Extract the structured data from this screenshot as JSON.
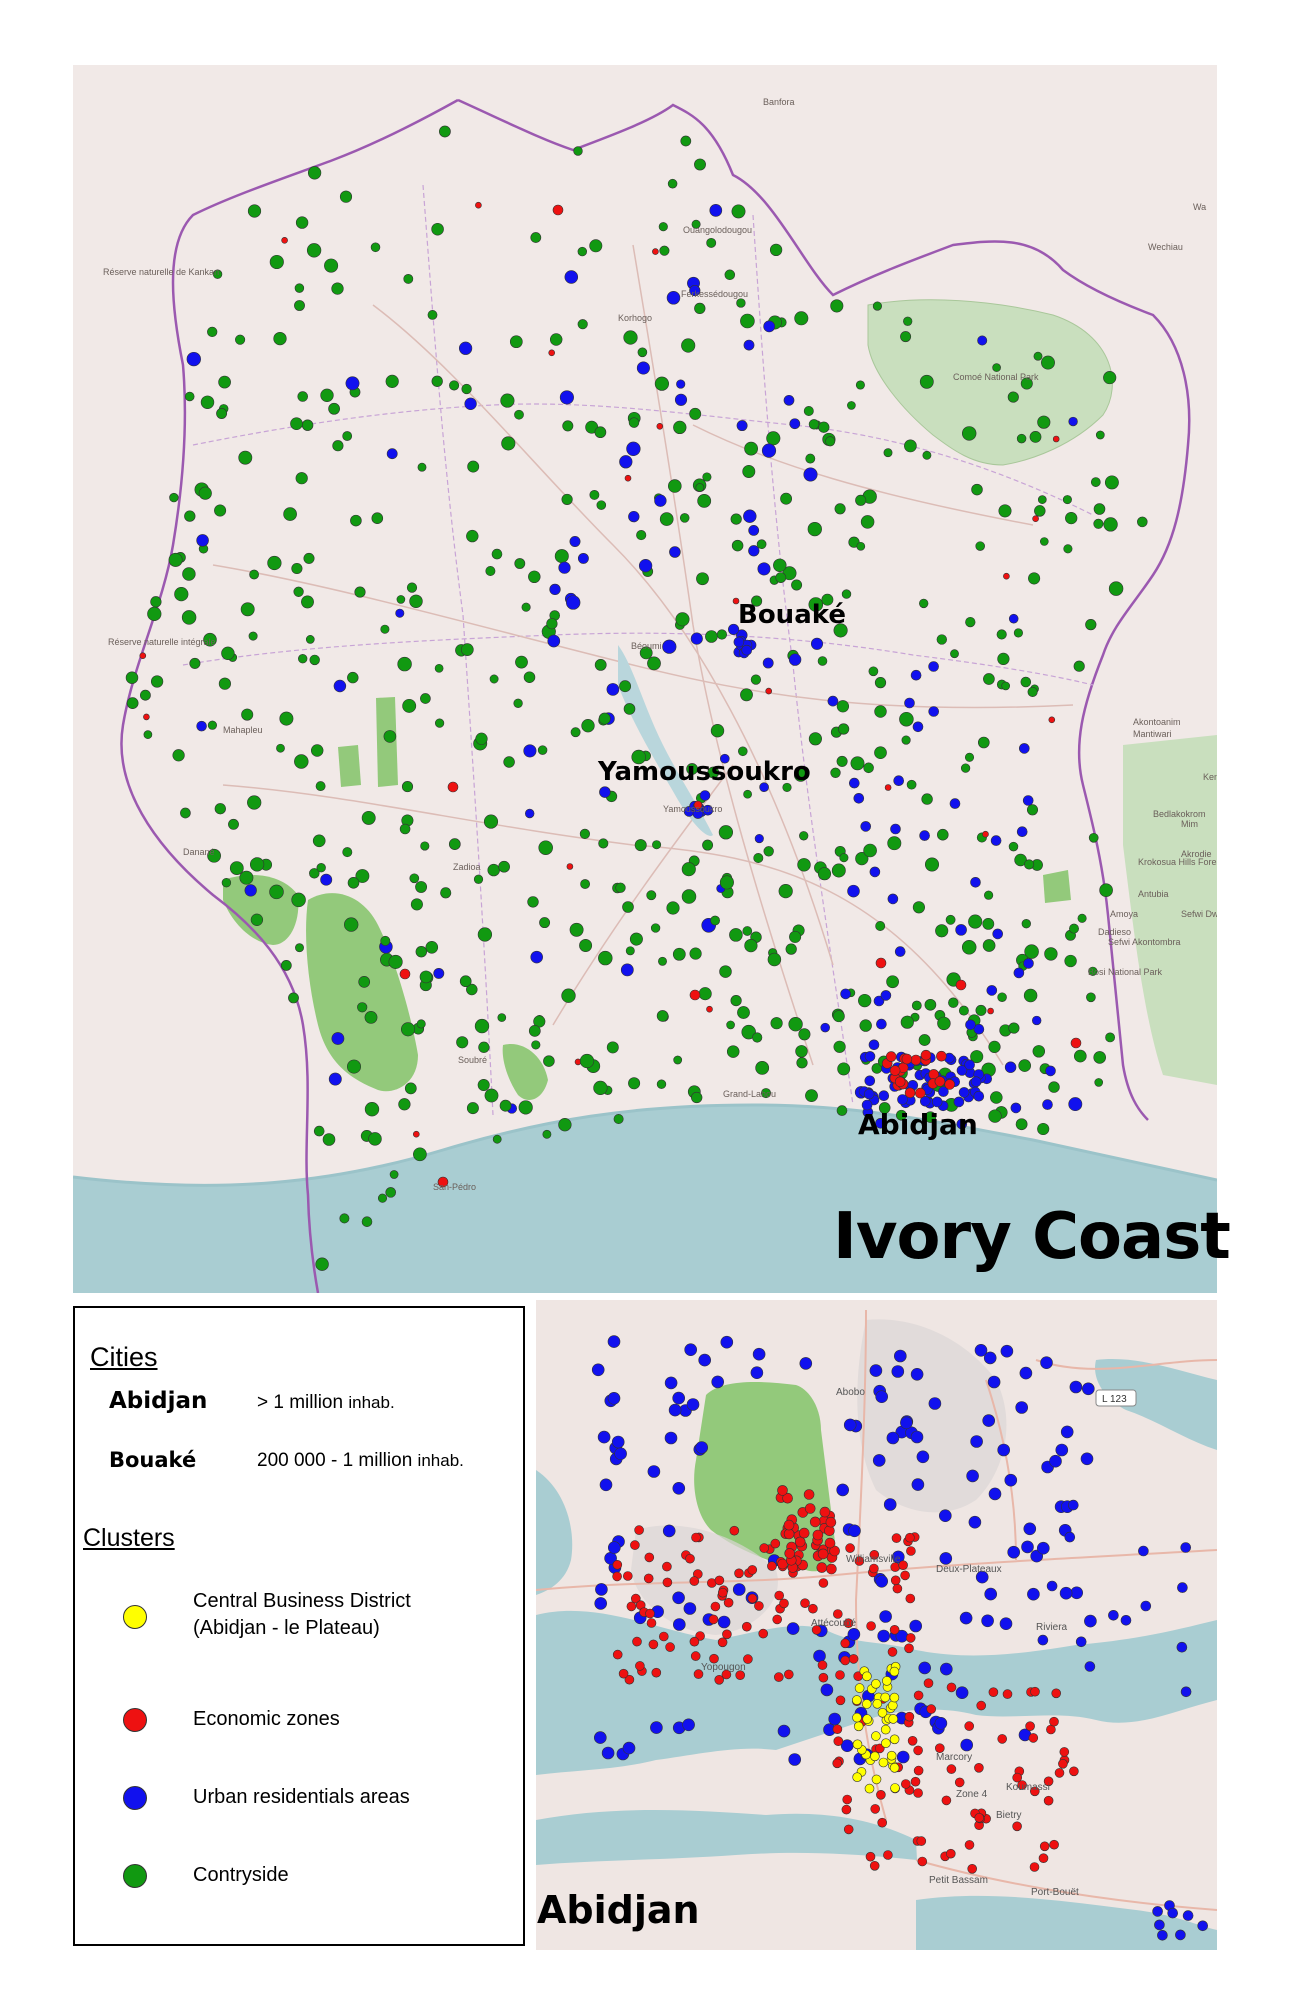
{
  "colors": {
    "land": "#f1e9e7",
    "sea": "#a9cdd2",
    "park": "#93c97b",
    "border": "#9b59b0",
    "road": "#e6c8c3",
    "cbd": "#ffff00",
    "economic": "#ee1111",
    "residential": "#1111ee",
    "countryside": "#119911"
  },
  "main_map": {
    "title": "Ivory Coast",
    "major_cities": [
      {
        "name": "Bouaké",
        "category": "200 000 - 1 million inhab."
      },
      {
        "name": "Yamoussoukro",
        "category": "200 000 - 1 million inhab."
      },
      {
        "name": "Abidjan",
        "category": "> 1 million inhab."
      }
    ],
    "small_labels": [
      "Banfora",
      "Ouangolodougou",
      "Ferkessédougou",
      "Korhogo",
      "Comoé National Park",
      "Réserve naturelle de Kankan",
      "Réserve naturelle intégrale",
      "Wechiau",
      "Wa",
      "Béoumi",
      "Mahapleu",
      "Danané",
      "Zadioa",
      "Soubré",
      "San-Pédro",
      "Grand-Lahou",
      "Yamoussoukro",
      "Akontoanim",
      "Mantiwari",
      "Bedlakokrom",
      "Mim",
      "Akrodie",
      "Antubia",
      "Amoya",
      "Sefwi Dwen",
      "Dadieso",
      "Sefwi Akontombra",
      "Bosi National Park",
      "Krokosua Hills Forest Reserve",
      "Kenyase"
    ]
  },
  "inset_map": {
    "title": "Abidjan",
    "place_labels": [
      "Abobo",
      "Williamsville",
      "Deux-Plateaux",
      "Attécoubé",
      "Yopougon",
      "Riviera",
      "Marcory",
      "Koumassi",
      "Zone 4",
      "Bietry",
      "Petit Bassam",
      "Port-Bouët",
      "L 123"
    ]
  },
  "legend": {
    "cities_heading": "Cities",
    "cities": [
      {
        "name": "Abidjan",
        "range": "> 1 million",
        "unit": "inhab."
      },
      {
        "name": "Bouaké",
        "range": "200 000 - 1 million",
        "unit": "inhab."
      }
    ],
    "clusters_heading": "Clusters",
    "clusters": [
      {
        "label_line1": "Central Business District",
        "label_line2": "(Abidjan - le Plateau)",
        "color": "#ffff00"
      },
      {
        "label_line1": "Economic zones",
        "label_line2": "",
        "color": "#ee1111"
      },
      {
        "label_line1": "Urban residentials areas",
        "label_line2": "",
        "color": "#1111ee"
      },
      {
        "label_line1": "Contryside",
        "label_line2": "",
        "color": "#119911"
      }
    ]
  }
}
